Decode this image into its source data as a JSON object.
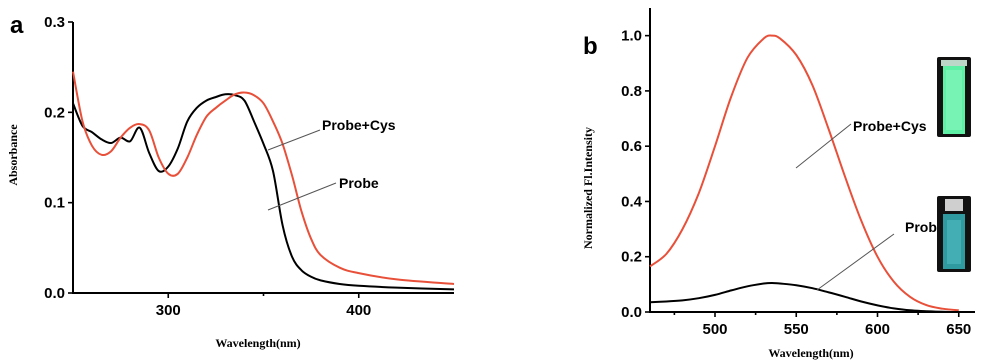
{
  "chart_data": [
    {
      "panel": "a",
      "type": "line",
      "title": "",
      "xlabel": "Wavelength(nm)",
      "ylabel": "Absorbance",
      "xlim": [
        250,
        450
      ],
      "ylim": [
        0,
        0.3
      ],
      "xticks": [
        "300",
        "400"
      ],
      "yticks": [
        "0.0",
        "0.1",
        "0.2",
        "0.3"
      ],
      "grid": false,
      "series": [
        {
          "name": "Probe",
          "color": "#000000",
          "x": [
            250,
            255,
            260,
            265,
            270,
            275,
            280,
            285,
            290,
            295,
            300,
            305,
            310,
            315,
            320,
            325,
            330,
            335,
            340,
            345,
            350,
            355,
            360,
            365,
            370,
            375,
            380,
            390,
            400,
            420,
            450
          ],
          "y": [
            0.21,
            0.185,
            0.178,
            0.17,
            0.166,
            0.172,
            0.168,
            0.183,
            0.155,
            0.135,
            0.14,
            0.16,
            0.19,
            0.205,
            0.213,
            0.217,
            0.22,
            0.219,
            0.213,
            0.19,
            0.165,
            0.135,
            0.075,
            0.04,
            0.025,
            0.018,
            0.014,
            0.01,
            0.008,
            0.006,
            0.004
          ]
        },
        {
          "name": "Probe+Cys",
          "color": "#e8503a",
          "x": [
            250,
            255,
            260,
            265,
            270,
            275,
            280,
            285,
            290,
            295,
            300,
            305,
            310,
            315,
            320,
            325,
            330,
            335,
            340,
            345,
            350,
            355,
            360,
            365,
            370,
            375,
            380,
            390,
            400,
            420,
            450
          ],
          "y": [
            0.245,
            0.19,
            0.163,
            0.153,
            0.157,
            0.172,
            0.183,
            0.187,
            0.18,
            0.15,
            0.132,
            0.132,
            0.15,
            0.175,
            0.195,
            0.205,
            0.213,
            0.22,
            0.222,
            0.219,
            0.21,
            0.19,
            0.165,
            0.13,
            0.09,
            0.06,
            0.042,
            0.028,
            0.022,
            0.015,
            0.01
          ]
        }
      ],
      "annotations": [
        "Probe+Cys",
        "Probe"
      ]
    },
    {
      "panel": "b",
      "type": "line",
      "title": "",
      "xlabel": "Wavelength(nm)",
      "ylabel": "Normalized Fl.Intensity",
      "xlim": [
        460,
        660
      ],
      "ylim": [
        0,
        1.1
      ],
      "xticks": [
        "500",
        "550",
        "600",
        "650"
      ],
      "yticks": [
        "0.0",
        "0.2",
        "0.4",
        "0.6",
        "0.8",
        "1.0"
      ],
      "grid": false,
      "series": [
        {
          "name": "Probe+Cys",
          "color": "#e8503a",
          "x": [
            460,
            470,
            480,
            490,
            500,
            510,
            520,
            530,
            535,
            540,
            550,
            560,
            570,
            580,
            590,
            600,
            610,
            620,
            630,
            640,
            650
          ],
          "y": [
            0.165,
            0.21,
            0.3,
            0.43,
            0.6,
            0.78,
            0.92,
            0.99,
            1.0,
            0.99,
            0.93,
            0.82,
            0.66,
            0.49,
            0.33,
            0.2,
            0.11,
            0.055,
            0.025,
            0.012,
            0.006
          ]
        },
        {
          "name": "Probe",
          "color": "#000000",
          "x": [
            460,
            470,
            480,
            490,
            500,
            510,
            520,
            530,
            535,
            540,
            550,
            560,
            570,
            580,
            590,
            600,
            610,
            620,
            630,
            640,
            650
          ],
          "y": [
            0.035,
            0.038,
            0.042,
            0.05,
            0.062,
            0.078,
            0.093,
            0.103,
            0.105,
            0.103,
            0.097,
            0.086,
            0.071,
            0.055,
            0.038,
            0.024,
            0.013,
            0.006,
            0.003,
            0.001,
            0.0
          ]
        }
      ],
      "annotations": [
        "Probe+Cys",
        "Probe"
      ]
    }
  ],
  "colors": {
    "cuvette_bright": "#5ef0a4",
    "cuvette_dim": "#2f9aa0"
  }
}
